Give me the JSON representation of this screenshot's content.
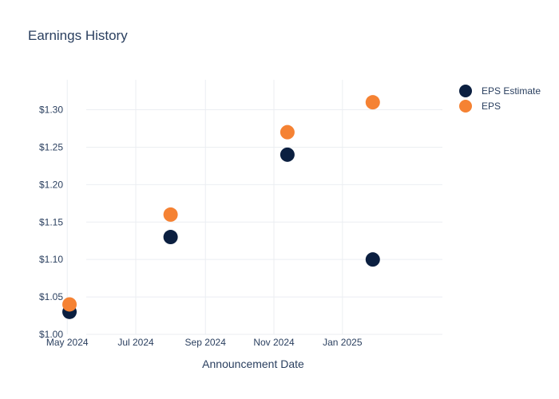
{
  "chart_data": {
    "type": "scatter",
    "title": "Earnings History",
    "xlabel": "Announcement Date",
    "ylabel": "",
    "x_ticks": [
      "May 2024",
      "Jul 2024",
      "Sep 2024",
      "Nov 2024",
      "Jan 2025"
    ],
    "y_ticks": [
      "$1.00",
      "$1.05",
      "$1.10",
      "$1.15",
      "$1.20",
      "$1.25",
      "$1.30"
    ],
    "ylim": [
      1.0,
      1.34
    ],
    "xlim": [
      "2024-04-28",
      "2025-03-31"
    ],
    "grid": true,
    "legend_position": "top-right",
    "series": [
      {
        "name": "EPS Estimate",
        "color": "#0b1f40",
        "points": [
          {
            "x": "2024-05-03",
            "y": 1.03
          },
          {
            "x": "2024-08-01",
            "y": 1.13
          },
          {
            "x": "2024-11-13",
            "y": 1.24
          },
          {
            "x": "2025-01-28",
            "y": 1.1
          }
        ]
      },
      {
        "name": "EPS",
        "color": "#f58233",
        "points": [
          {
            "x": "2024-05-03",
            "y": 1.04
          },
          {
            "x": "2024-08-01",
            "y": 1.16
          },
          {
            "x": "2024-11-13",
            "y": 1.27
          },
          {
            "x": "2025-01-28",
            "y": 1.31
          }
        ]
      }
    ]
  }
}
